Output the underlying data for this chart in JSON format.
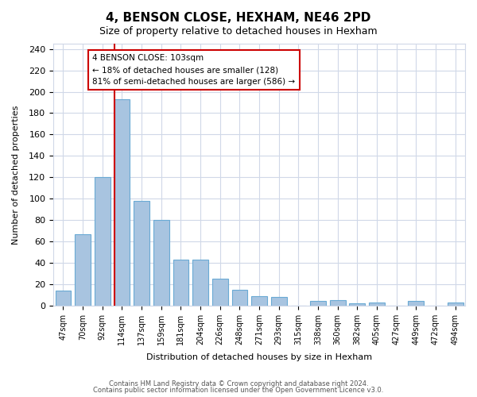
{
  "title": "4, BENSON CLOSE, HEXHAM, NE46 2PD",
  "subtitle": "Size of property relative to detached houses in Hexham",
  "xlabel": "Distribution of detached houses by size in Hexham",
  "ylabel": "Number of detached properties",
  "categories": [
    "47sqm",
    "70sqm",
    "92sqm",
    "114sqm",
    "137sqm",
    "159sqm",
    "181sqm",
    "204sqm",
    "226sqm",
    "248sqm",
    "271sqm",
    "293sqm",
    "315sqm",
    "338sqm",
    "360sqm",
    "382sqm",
    "405sqm",
    "427sqm",
    "449sqm",
    "472sqm",
    "494sqm"
  ],
  "values": [
    14,
    67,
    120,
    193,
    98,
    80,
    43,
    43,
    25,
    15,
    9,
    8,
    0,
    4,
    5,
    2,
    3,
    0,
    4,
    0,
    3
  ],
  "bar_color": "#a8c4e0",
  "bar_edge_color": "#6aaad4",
  "vline_x": 2.6,
  "vline_color": "#cc0000",
  "annotation_title": "4 BENSON CLOSE: 103sqm",
  "annotation_line1": "← 18% of detached houses are smaller (128)",
  "annotation_line2": "81% of semi-detached houses are larger (586) →",
  "annotation_box_color": "#cc0000",
  "ylim": [
    0,
    245
  ],
  "yticks": [
    0,
    20,
    40,
    60,
    80,
    100,
    120,
    140,
    160,
    180,
    200,
    220,
    240
  ],
  "footer1": "Contains HM Land Registry data © Crown copyright and database right 2024.",
  "footer2": "Contains public sector information licensed under the Open Government Licence v3.0.",
  "background_color": "#ffffff",
  "grid_color": "#d0d8e8"
}
